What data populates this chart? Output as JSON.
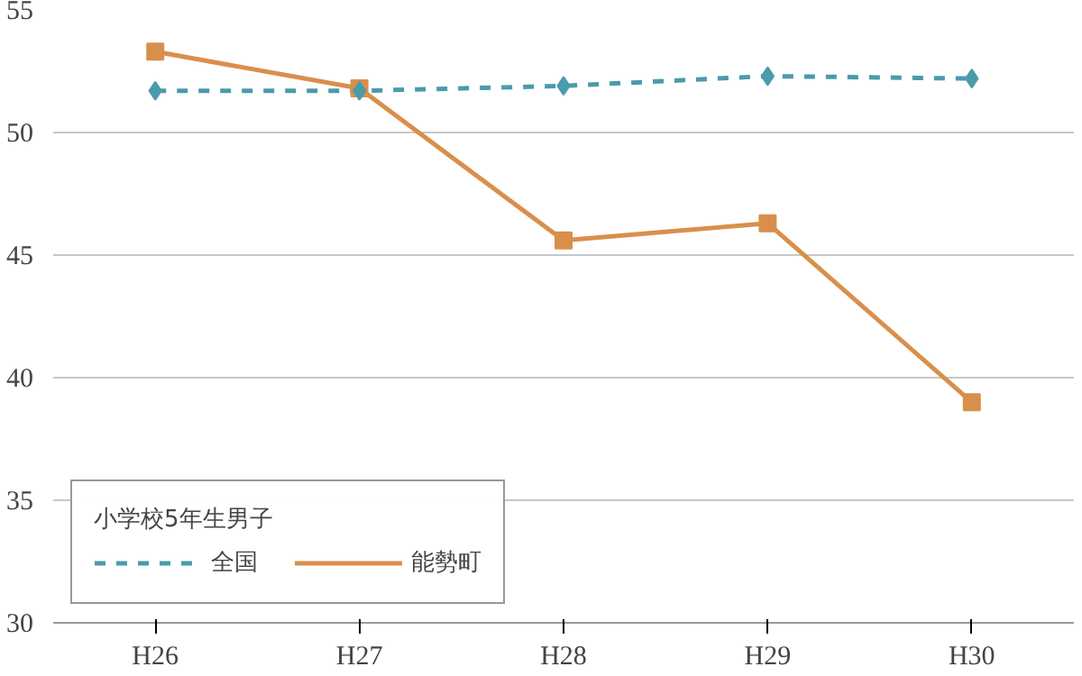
{
  "chart_data": {
    "type": "line",
    "legend_title": "小学校5年生男子",
    "categories": [
      "H26",
      "H27",
      "H28",
      "H29",
      "H30"
    ],
    "series": [
      {
        "name": "全国",
        "color": "#4a9bab",
        "values": [
          51.7,
          51.7,
          51.9,
          52.3,
          52.2
        ],
        "marker": "diamond",
        "line_style": "dashed"
      },
      {
        "name": "能勢町",
        "color": "#d98f4c",
        "values": [
          53.3,
          51.8,
          45.6,
          46.3,
          39.0
        ],
        "marker": "square",
        "line_style": "solid"
      }
    ],
    "ylim": [
      30,
      55
    ],
    "yticks": [
      30,
      35,
      40,
      45,
      50,
      55
    ],
    "grid": "y",
    "legend": "bottom left"
  }
}
